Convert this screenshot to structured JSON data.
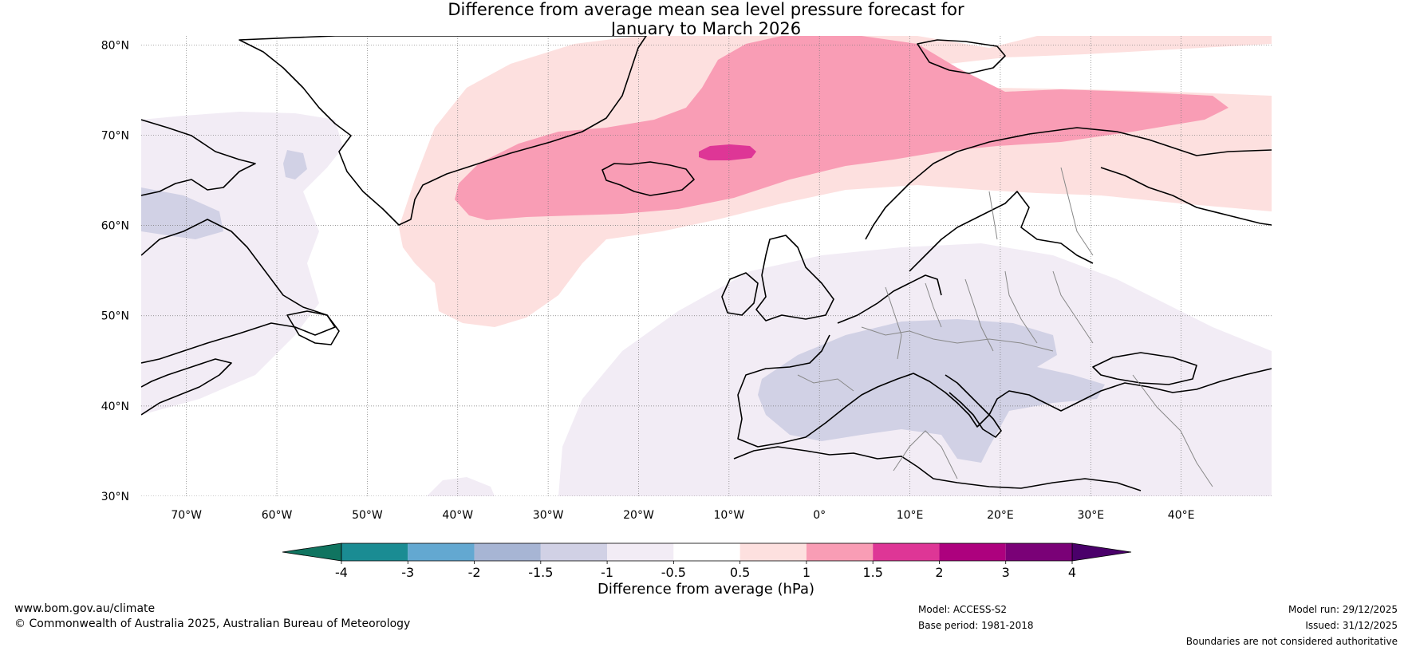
{
  "title": {
    "line1": "Difference from average mean sea level pressure forecast for",
    "line2": "January to March 2026"
  },
  "axes": {
    "lat_labels": [
      "80°N",
      "70°N",
      "60°N",
      "50°N",
      "40°N",
      "30°N"
    ],
    "lat_values": [
      80,
      70,
      60,
      50,
      40,
      30
    ],
    "lon_labels": [
      "70°W",
      "60°W",
      "50°W",
      "40°W",
      "30°W",
      "20°W",
      "10°W",
      "0°",
      "10°E",
      "20°E",
      "30°E",
      "40°E"
    ],
    "lon_values": [
      -70,
      -60,
      -50,
      -40,
      -30,
      -20,
      -10,
      0,
      10,
      20,
      30,
      40
    ],
    "lon_range": [
      -75,
      50
    ],
    "lat_range": [
      30,
      81
    ]
  },
  "colorbar": {
    "label": "Difference from average (hPa)",
    "tick_labels": [
      "-4",
      "-3",
      "-2",
      "-1.5",
      "-1",
      "-0.5",
      "0.5",
      "1",
      "1.5",
      "2",
      "3",
      "4"
    ],
    "bins": [
      {
        "from": -4,
        "to": -3,
        "color": "#1a8c93"
      },
      {
        "from": -3,
        "to": -2,
        "color": "#63a8d1"
      },
      {
        "from": -2,
        "to": -1.5,
        "color": "#a7b5d4"
      },
      {
        "from": -1.5,
        "to": -1,
        "color": "#d1d1e5"
      },
      {
        "from": -1,
        "to": -0.5,
        "color": "#f2ecf5"
      },
      {
        "from": -0.5,
        "to": 0.5,
        "color": "#ffffff"
      },
      {
        "from": 0.5,
        "to": 1,
        "color": "#fde0df"
      },
      {
        "from": 1,
        "to": 1.5,
        "color": "#f99db5"
      },
      {
        "from": 1.5,
        "to": 2,
        "color": "#de3696"
      },
      {
        "from": 2,
        "to": 3,
        "color": "#ad017e"
      },
      {
        "from": 3,
        "to": 4,
        "color": "#7a0177"
      }
    ],
    "under_color": "#107460",
    "over_color": "#4a006a"
  },
  "footer": {
    "website": "www.bom.gov.au/climate",
    "copyright": "© Commonwealth of Australia 2025, Australian Bureau of Meteorology",
    "model": "Model: ACCESS-S2",
    "base_period": "Base period: 1981-2018",
    "model_run": "Model run: 29/12/2025",
    "issued": "Issued: 31/12/2025",
    "disclaimer": "Boundaries are not considered authoritative"
  }
}
